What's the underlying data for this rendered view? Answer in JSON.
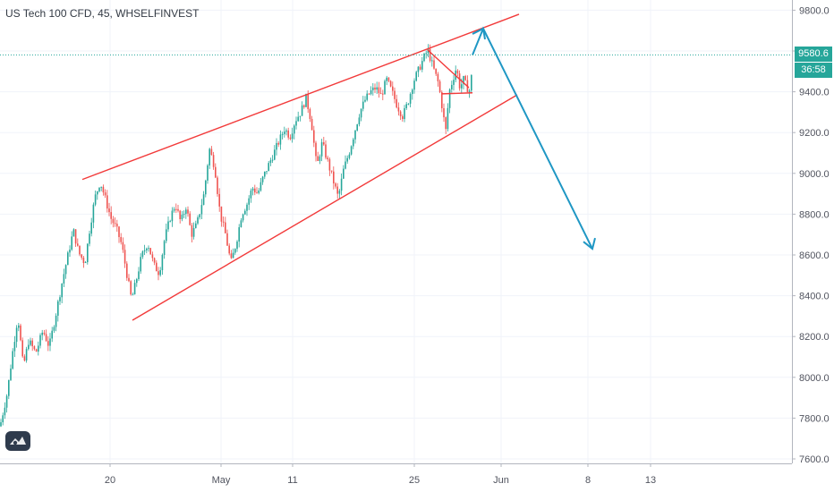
{
  "header": {
    "title": "US Tech 100 CFD, 45, WHSELFINVEST"
  },
  "price_badge": {
    "last_price": "9580.6",
    "countdown": "36:58"
  },
  "colors": {
    "up": "#26a69a",
    "down": "#ef5350",
    "channel": "#f23a3a",
    "forecast": "#1f97c4",
    "badge_bg": "#26a69a",
    "dotted_line": "#26a69a",
    "grid": "#f0f3fa",
    "axis_text": "#50535e"
  },
  "icons": {
    "logo": "tradingview-logo-icon"
  },
  "chart_data": {
    "type": "candlestick",
    "title": "US Tech 100 CFD, 45, WHSELFINVEST",
    "timeframe": "45",
    "grid": true,
    "ylim": [
      7580,
      9860
    ],
    "y_ticks": [
      {
        "value": 9800,
        "label": "9800.0"
      },
      {
        "value": 9600,
        "label": "9600.0"
      },
      {
        "value": 9400,
        "label": "9400.0"
      },
      {
        "value": 9200,
        "label": "9200.0"
      },
      {
        "value": 9000,
        "label": "9000.0"
      },
      {
        "value": 8800,
        "label": "8800.0"
      },
      {
        "value": 8600,
        "label": "8600.0"
      },
      {
        "value": 8400,
        "label": "8400.0"
      },
      {
        "value": 8200,
        "label": "8200.0"
      },
      {
        "value": 8000,
        "label": "8000.0"
      },
      {
        "value": 7800,
        "label": "7800.0"
      },
      {
        "value": 7600,
        "label": "7600.0"
      }
    ],
    "x_ticks": [
      {
        "label": "20",
        "index": 123
      },
      {
        "label": "May",
        "index": 247
      },
      {
        "label": "11",
        "index": 327
      },
      {
        "label": "25",
        "index": 463
      },
      {
        "label": "Jun",
        "index": 560
      },
      {
        "label": "8",
        "index": 657
      },
      {
        "label": "13",
        "index": 727
      }
    ],
    "last_price": 9580.6,
    "price_path": [
      [
        0,
        7760
      ],
      [
        8,
        7920
      ],
      [
        14,
        8120
      ],
      [
        20,
        8300
      ],
      [
        26,
        8050
      ],
      [
        32,
        8180
      ],
      [
        40,
        8120
      ],
      [
        48,
        8230
      ],
      [
        55,
        8150
      ],
      [
        62,
        8300
      ],
      [
        70,
        8480
      ],
      [
        76,
        8600
      ],
      [
        82,
        8720
      ],
      [
        88,
        8610
      ],
      [
        95,
        8560
      ],
      [
        100,
        8720
      ],
      [
        106,
        8880
      ],
      [
        112,
        8960
      ],
      [
        118,
        8870
      ],
      [
        124,
        8780
      ],
      [
        130,
        8730
      ],
      [
        136,
        8650
      ],
      [
        142,
        8500
      ],
      [
        147,
        8380
      ],
      [
        152,
        8470
      ],
      [
        158,
        8590
      ],
      [
        165,
        8660
      ],
      [
        172,
        8550
      ],
      [
        178,
        8510
      ],
      [
        184,
        8680
      ],
      [
        190,
        8780
      ],
      [
        196,
        8850
      ],
      [
        202,
        8760
      ],
      [
        208,
        8840
      ],
      [
        214,
        8700
      ],
      [
        220,
        8750
      ],
      [
        228,
        8900
      ],
      [
        234,
        9120
      ],
      [
        240,
        9030
      ],
      [
        246,
        8800
      ],
      [
        252,
        8700
      ],
      [
        258,
        8560
      ],
      [
        264,
        8660
      ],
      [
        270,
        8800
      ],
      [
        276,
        8850
      ],
      [
        282,
        8930
      ],
      [
        288,
        8900
      ],
      [
        294,
        8980
      ],
      [
        300,
        9040
      ],
      [
        306,
        9100
      ],
      [
        312,
        9160
      ],
      [
        318,
        9220
      ],
      [
        324,
        9180
      ],
      [
        330,
        9260
      ],
      [
        336,
        9300
      ],
      [
        342,
        9370
      ],
      [
        348,
        9250
      ],
      [
        354,
        9030
      ],
      [
        360,
        9150
      ],
      [
        366,
        9060
      ],
      [
        372,
        8970
      ],
      [
        378,
        8880
      ],
      [
        384,
        9020
      ],
      [
        390,
        9100
      ],
      [
        396,
        9200
      ],
      [
        402,
        9300
      ],
      [
        408,
        9360
      ],
      [
        414,
        9400
      ],
      [
        420,
        9420
      ],
      [
        426,
        9380
      ],
      [
        432,
        9460
      ],
      [
        438,
        9400
      ],
      [
        444,
        9330
      ],
      [
        450,
        9280
      ],
      [
        456,
        9350
      ],
      [
        462,
        9450
      ],
      [
        468,
        9510
      ],
      [
        474,
        9570
      ],
      [
        478,
        9605
      ],
      [
        484,
        9520
      ],
      [
        490,
        9440
      ],
      [
        495,
        9300
      ],
      [
        498,
        9200
      ],
      [
        502,
        9400
      ],
      [
        506,
        9460
      ],
      [
        510,
        9520
      ],
      [
        514,
        9420
      ],
      [
        518,
        9460
      ],
      [
        522,
        9420
      ],
      [
        526,
        9400
      ],
      [
        528,
        9580
      ]
    ],
    "annotations": {
      "upper_channel": {
        "from": [
          92,
          8970
        ],
        "to": [
          580,
          9780
        ]
      },
      "lower_channel": {
        "from": [
          148,
          8280
        ],
        "to": [
          578,
          9385
        ]
      },
      "triangle_top": {
        "from": [
          478,
          9605
        ],
        "to": [
          524,
          9420
        ]
      },
      "triangle_bottom": {
        "from": [
          494,
          9390
        ],
        "to": [
          528,
          9395
        ]
      },
      "forecast_path": [
        [
          528,
          9580
        ],
        [
          540,
          9710
        ],
        [
          662,
          8630
        ]
      ]
    }
  }
}
